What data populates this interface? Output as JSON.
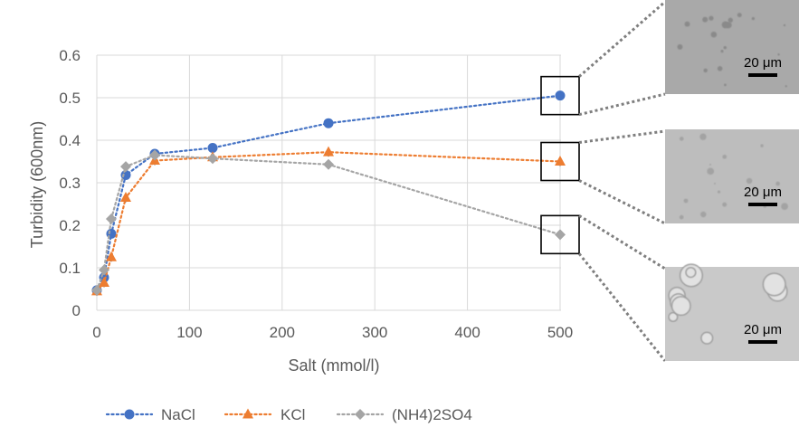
{
  "chart_data": {
    "type": "scatter",
    "xlabel": "Salt (mmol/l)",
    "ylabel": "Turbidity (600nm)",
    "xlim": [
      0,
      500
    ],
    "ylim": [
      0,
      0.6
    ],
    "x_ticks": [
      0,
      100,
      200,
      300,
      400,
      500
    ],
    "x_tick_labels": [
      "0",
      "100",
      "200",
      "300",
      "400",
      "500"
    ],
    "y_ticks": [
      0,
      0.1,
      0.2,
      0.3,
      0.4,
      0.5,
      0.6
    ],
    "y_tick_labels": [
      "0",
      "0.1",
      "0.2",
      "0.3",
      "0.4",
      "0.5",
      "0.6"
    ],
    "grid": true,
    "legend_position": "bottom",
    "series": [
      {
        "name": "NaCl",
        "marker": "circle",
        "color": "#4472C4",
        "x": [
          0,
          7.8,
          15.6,
          31.25,
          62.5,
          125,
          250,
          500
        ],
        "y": [
          0.047,
          0.077,
          0.18,
          0.318,
          0.368,
          0.382,
          0.44,
          0.505
        ]
      },
      {
        "name": "KCl",
        "marker": "triangle",
        "color": "#ED7D31",
        "x": [
          0,
          7.8,
          15.6,
          31.25,
          62.5,
          125,
          250,
          500
        ],
        "y": [
          0.045,
          0.065,
          0.125,
          0.265,
          0.352,
          0.36,
          0.372,
          0.35
        ]
      },
      {
        "name": "(NH4)2SO4",
        "marker": "diamond",
        "color": "#A5A5A5",
        "x": [
          0,
          7.8,
          15.6,
          31.25,
          62.5,
          125,
          250,
          500
        ],
        "y": [
          0.047,
          0.095,
          0.215,
          0.338,
          0.365,
          0.357,
          0.343,
          0.178
        ]
      }
    ],
    "annotations": {
      "scale_bar_label": "20 μm",
      "micrographs": [
        "NaCl 500",
        "KCl 500",
        "(NH4)2SO4 500"
      ]
    }
  }
}
